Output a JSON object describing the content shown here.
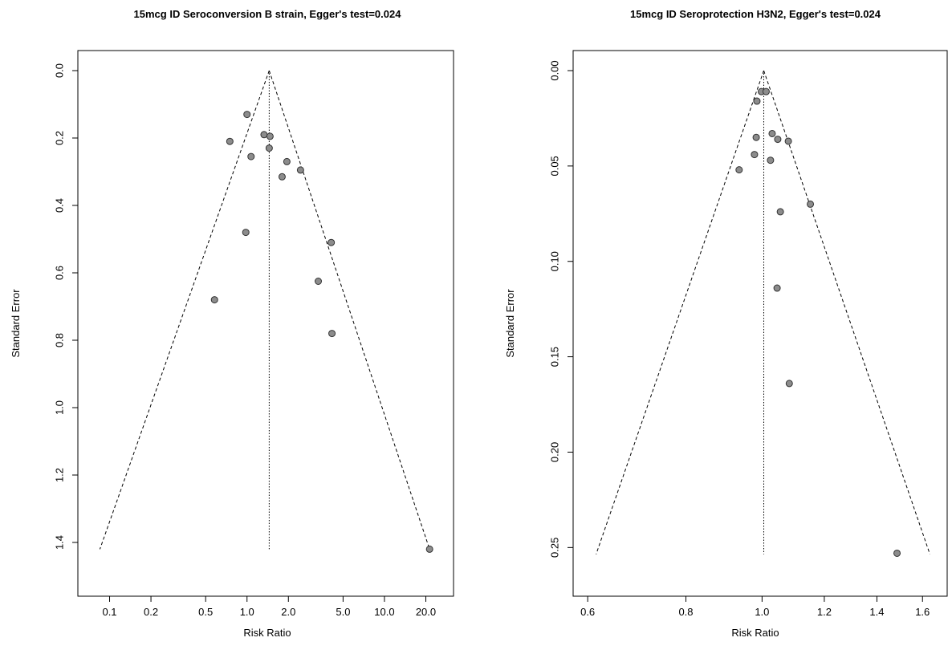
{
  "chart_data": [
    {
      "type": "scatter",
      "subtype": "funnel",
      "title": "15mcg ID Seroconversion B strain, Egger's test=0.024",
      "xlabel": "Risk Ratio",
      "ylabel": "Standard Error",
      "x_scale": "log",
      "x_ticks": [
        0.1,
        0.2,
        0.5,
        1.0,
        2.0,
        5.0,
        10.0,
        20.0
      ],
      "x_tick_labels": [
        "0.1",
        "0.2",
        "0.5",
        "1.0",
        "2.0",
        "5.0",
        "10.0",
        "20.0"
      ],
      "xlim": [
        0.07,
        26
      ],
      "y_reversed": true,
      "y_ticks": [
        0.0,
        0.2,
        0.4,
        0.6,
        0.8,
        1.0,
        1.2,
        1.4
      ],
      "y_tick_labels": [
        "0.0",
        "0.2",
        "0.4",
        "0.6",
        "0.8",
        "1.0",
        "1.2",
        "1.4"
      ],
      "ylim": [
        0.0,
        1.5
      ],
      "pooled_estimate": 1.45,
      "funnel_lines_at_se": 1.42,
      "funnel_left_x": 0.085,
      "funnel_right_x": 21.3,
      "points": [
        {
          "x": 1.0,
          "y": 0.13
        },
        {
          "x": 0.75,
          "y": 0.21
        },
        {
          "x": 1.33,
          "y": 0.19
        },
        {
          "x": 1.47,
          "y": 0.195
        },
        {
          "x": 1.45,
          "y": 0.23
        },
        {
          "x": 1.07,
          "y": 0.255
        },
        {
          "x": 1.95,
          "y": 0.27
        },
        {
          "x": 2.45,
          "y": 0.295
        },
        {
          "x": 1.8,
          "y": 0.315
        },
        {
          "x": 0.98,
          "y": 0.48
        },
        {
          "x": 4.1,
          "y": 0.51
        },
        {
          "x": 3.3,
          "y": 0.625
        },
        {
          "x": 0.58,
          "y": 0.68
        },
        {
          "x": 4.15,
          "y": 0.78
        },
        {
          "x": 21.3,
          "y": 1.42
        }
      ]
    },
    {
      "type": "scatter",
      "subtype": "funnel",
      "title": "15mcg ID Seroprotection H3N2, Egger's test=0.024",
      "xlabel": "Risk Ratio",
      "ylabel": "Standard Error",
      "x_scale": "log",
      "x_ticks": [
        0.6,
        0.8,
        1.0,
        1.2,
        1.4,
        1.6
      ],
      "x_tick_labels": [
        "0.6",
        "0.8",
        "1.0",
        "1.2",
        "1.4",
        "1.6"
      ],
      "xlim": [
        0.59,
        1.68
      ],
      "y_reversed": true,
      "y_ticks": [
        0.0,
        0.05,
        0.1,
        0.15,
        0.2,
        0.25
      ],
      "y_tick_labels": [
        "0.00",
        "0.05",
        "0.10",
        "0.15",
        "0.20",
        "0.25"
      ],
      "ylim": [
        0.0,
        0.265
      ],
      "pooled_estimate": 1.005,
      "funnel_lines_at_se": 0.2535,
      "funnel_left_x": 0.615,
      "funnel_right_x": 1.635,
      "points": [
        {
          "x": 0.998,
          "y": 0.011
        },
        {
          "x": 1.012,
          "y": 0.011
        },
        {
          "x": 0.985,
          "y": 0.016
        },
        {
          "x": 1.03,
          "y": 0.033
        },
        {
          "x": 0.983,
          "y": 0.035
        },
        {
          "x": 1.047,
          "y": 0.036
        },
        {
          "x": 1.08,
          "y": 0.037
        },
        {
          "x": 0.978,
          "y": 0.044
        },
        {
          "x": 1.025,
          "y": 0.047
        },
        {
          "x": 0.935,
          "y": 0.052
        },
        {
          "x": 1.152,
          "y": 0.07
        },
        {
          "x": 1.055,
          "y": 0.074
        },
        {
          "x": 1.045,
          "y": 0.114
        },
        {
          "x": 1.083,
          "y": 0.164
        },
        {
          "x": 1.485,
          "y": 0.253
        }
      ]
    }
  ]
}
